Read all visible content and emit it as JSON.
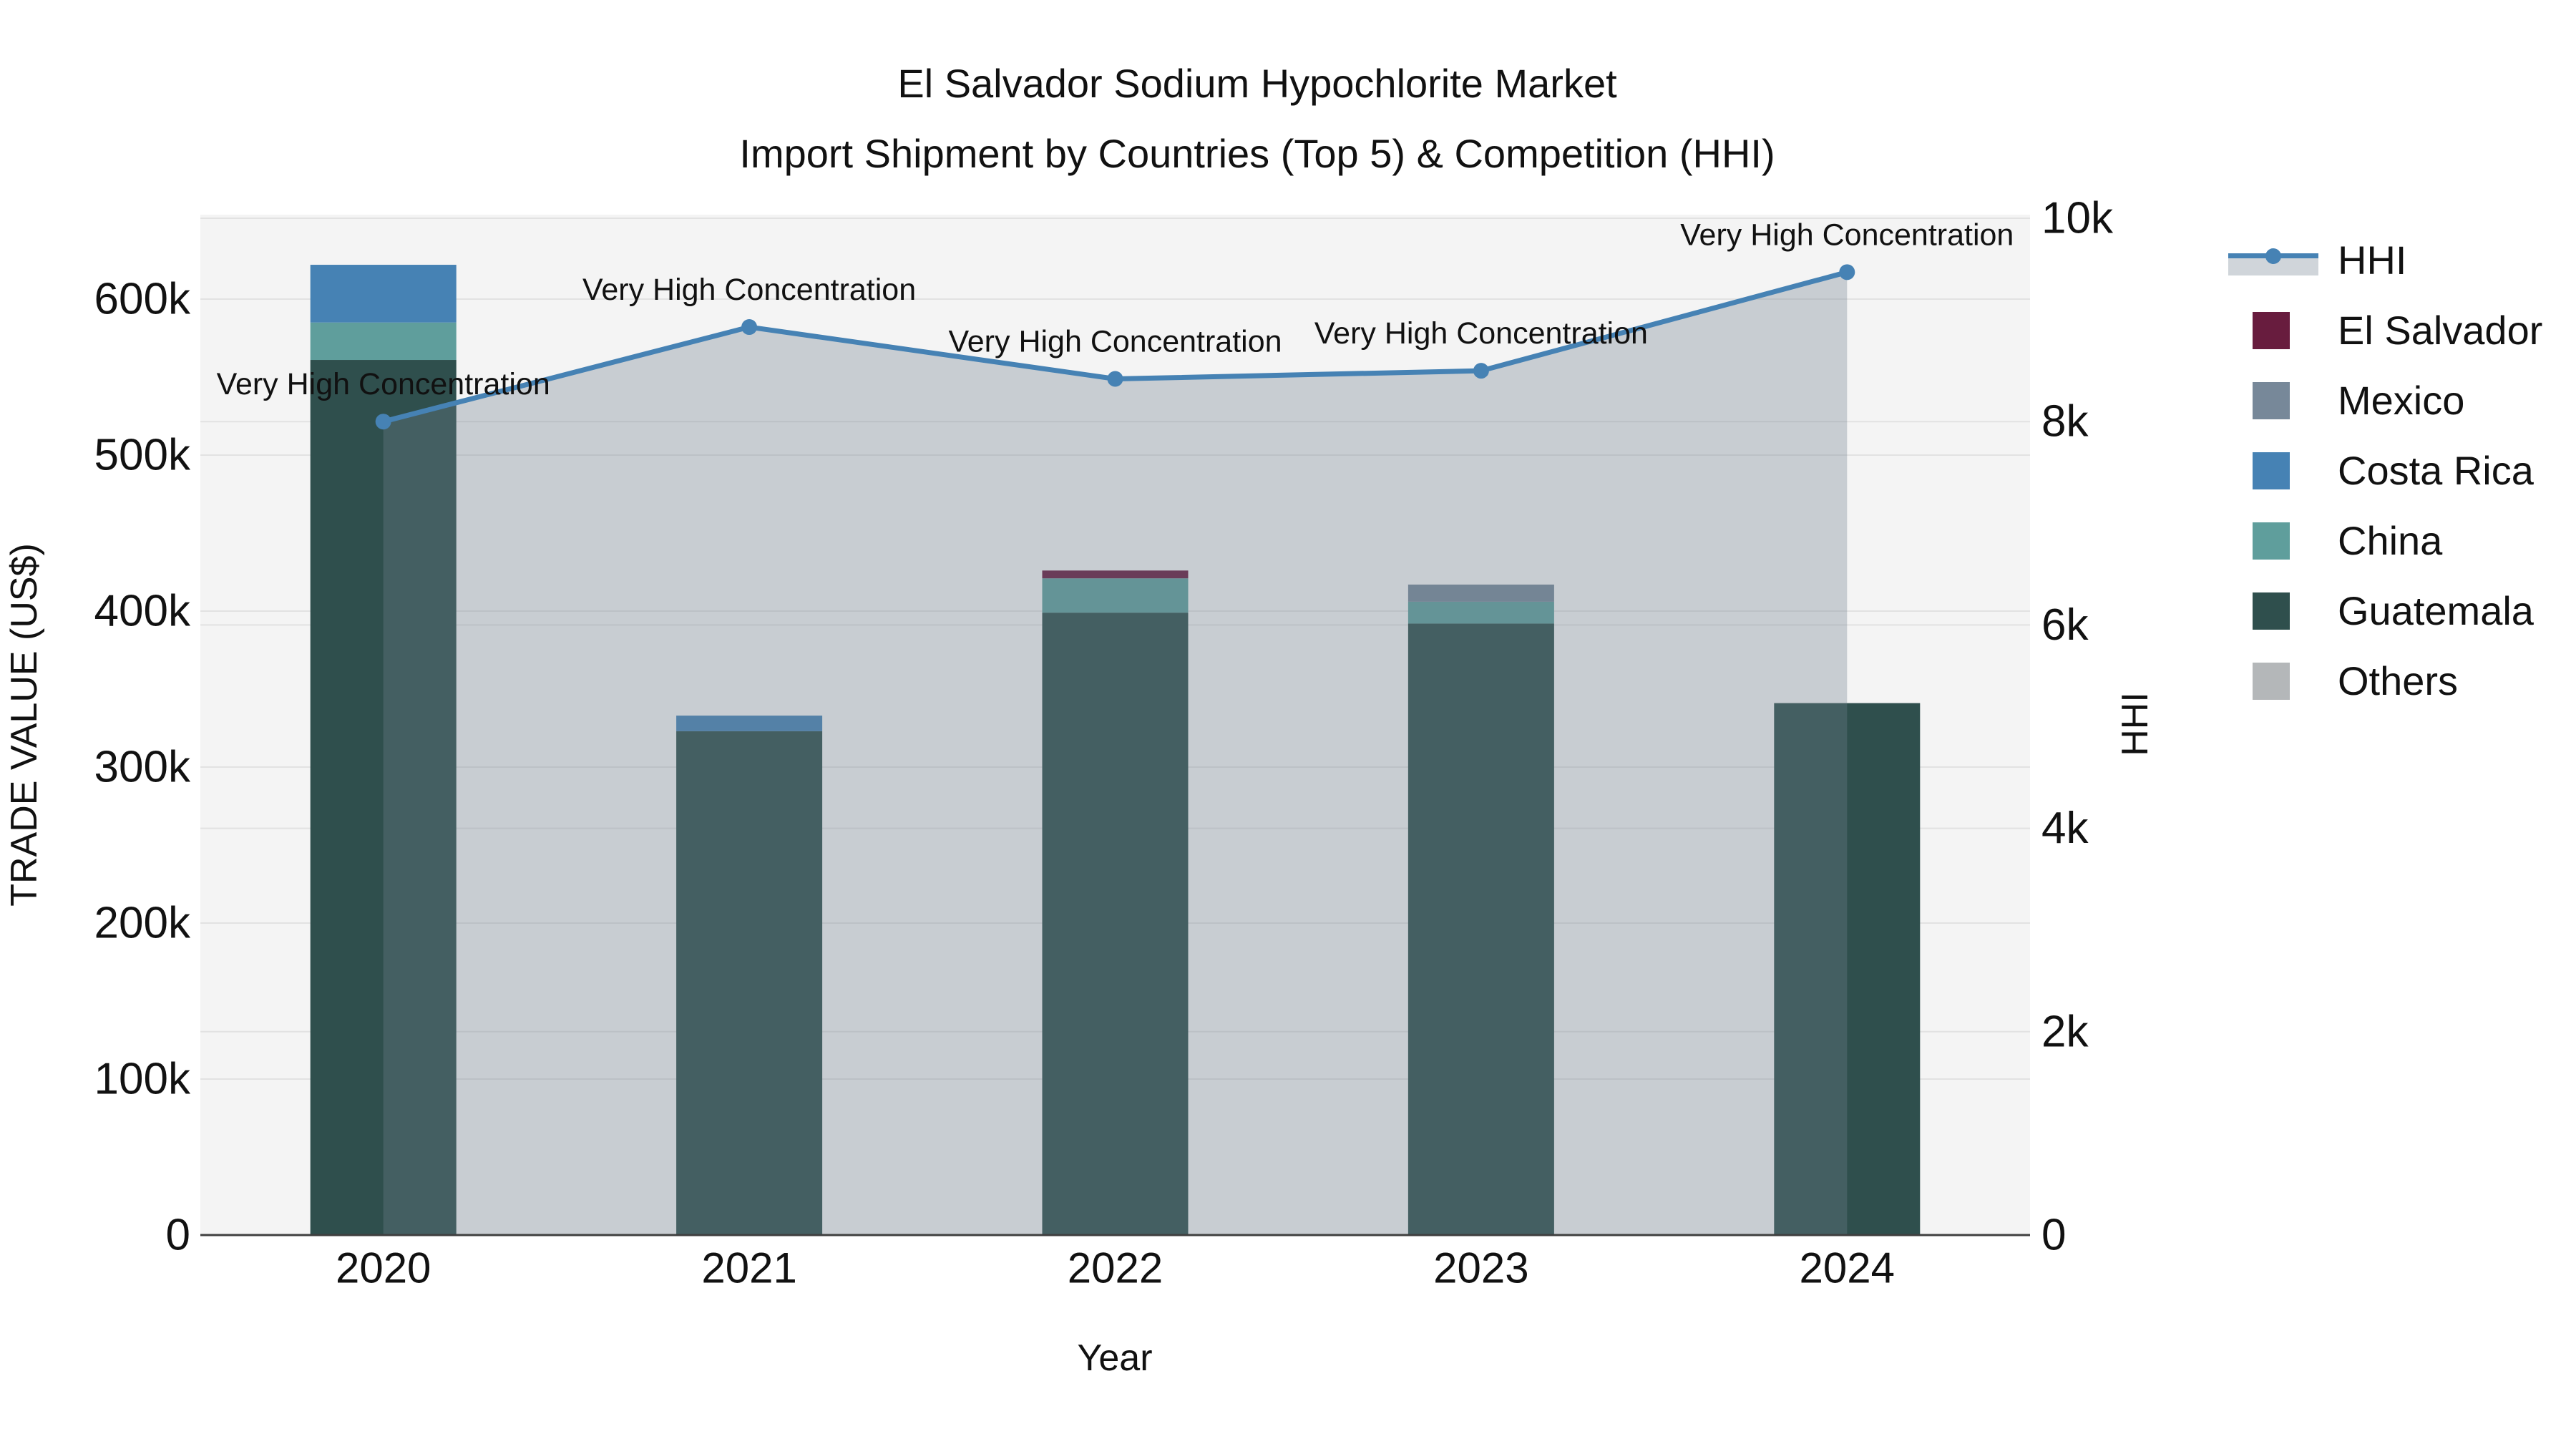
{
  "title": {
    "line1": "El Salvador Sodium Hypochlorite Market",
    "line2": "Import Shipment by Countries (Top 5) & Competition (HHI)"
  },
  "axes": {
    "x_title": "Year",
    "y_left_title": "TRADE VALUE (US$)",
    "y_right_title": "HHI"
  },
  "chart_data": {
    "type": "bar+line",
    "title": "El Salvador Sodium Hypochlorite Market — Import Shipment by Countries (Top 5) & Competition (HHI)",
    "categories": [
      "2020",
      "2021",
      "2022",
      "2023",
      "2024"
    ],
    "bar_series": [
      {
        "name": "El Salvador",
        "color": "#681c3e",
        "values": [
          0,
          0,
          5000,
          0,
          0
        ]
      },
      {
        "name": "Mexico",
        "color": "#778899",
        "values": [
          0,
          0,
          0,
          11000,
          0
        ]
      },
      {
        "name": "Costa Rica",
        "color": "#4682b4",
        "values": [
          37000,
          10000,
          0,
          0,
          0
        ]
      },
      {
        "name": "China",
        "color": "#5f9e9c",
        "values": [
          24000,
          0,
          22000,
          14000,
          0
        ]
      },
      {
        "name": "Guatemala",
        "color": "#2f4f4d",
        "values": [
          561000,
          323000,
          399000,
          392000,
          341000
        ]
      },
      {
        "name": "Others",
        "color": "#b4b7b9",
        "values": [
          0,
          0,
          0,
          0,
          0
        ]
      }
    ],
    "stack_order": [
      "Guatemala",
      "China",
      "Costa Rica",
      "Mexico",
      "El Salvador",
      "Others"
    ],
    "bar_totals": [
      622000,
      333000,
      426000,
      417000,
      341000
    ],
    "line_series": {
      "name": "HHI",
      "color": "#4682b4",
      "area_fill": "rgba(112,128,144,0.33)",
      "values": [
        8000,
        8930,
        8420,
        8500,
        9470
      ]
    },
    "point_annotations": [
      "Very High Concentration",
      "Very High Concentration",
      "Very High Concentration",
      "Very High Concentration",
      "Very High Concentration"
    ],
    "y_left": {
      "title": "TRADE VALUE (US$)",
      "tick_labels": [
        "0",
        "100k",
        "200k",
        "300k",
        "400k",
        "500k",
        "600k"
      ],
      "tick_values": [
        0,
        100000,
        200000,
        300000,
        400000,
        500000,
        600000
      ],
      "range": [
        0,
        600000
      ]
    },
    "y_right": {
      "title": "HHI",
      "tick_labels": [
        "0",
        "2k",
        "4k",
        "6k",
        "8k",
        "10k"
      ],
      "tick_values": [
        0,
        2000,
        4000,
        6000,
        8000,
        10000
      ],
      "range": [
        0,
        10000
      ]
    },
    "x_title": "Year",
    "grid": true,
    "plot_background": "#f4f4f4",
    "legend_position": "right"
  },
  "legend": {
    "items": [
      {
        "label": "HHI",
        "kind": "line"
      },
      {
        "label": "El Salvador",
        "kind": "patch",
        "color": "#681c3e"
      },
      {
        "label": "Mexico",
        "kind": "patch",
        "color": "#778899"
      },
      {
        "label": "Costa Rica",
        "kind": "patch",
        "color": "#4682b4"
      },
      {
        "label": "China",
        "kind": "patch",
        "color": "#5f9e9c"
      },
      {
        "label": "Guatemala",
        "kind": "patch",
        "color": "#2f4f4d"
      },
      {
        "label": "Others",
        "kind": "patch",
        "color": "#b4b7b9"
      }
    ]
  }
}
